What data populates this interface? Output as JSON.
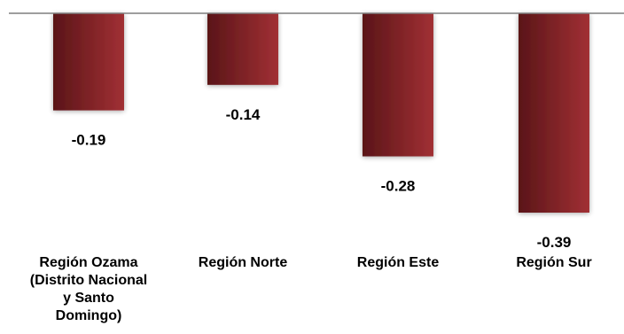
{
  "chart_data": {
    "type": "bar",
    "categories": [
      [
        "Región Ozama",
        "(Distrito Nacional",
        "y Santo",
        "Domingo)"
      ],
      [
        "Región Norte"
      ],
      [
        "Región Este"
      ],
      [
        "Región Sur"
      ]
    ],
    "values": [
      -0.19,
      -0.14,
      -0.28,
      -0.39
    ],
    "value_labels": [
      "-0.19",
      "-0.14",
      "-0.28",
      "-0.39"
    ],
    "ylim": [
      -0.39,
      0
    ],
    "grid": false,
    "colors": {
      "bar_dark": "#5a1518",
      "bar_light": "#a13034",
      "axis": "#7f7f7f"
    }
  }
}
